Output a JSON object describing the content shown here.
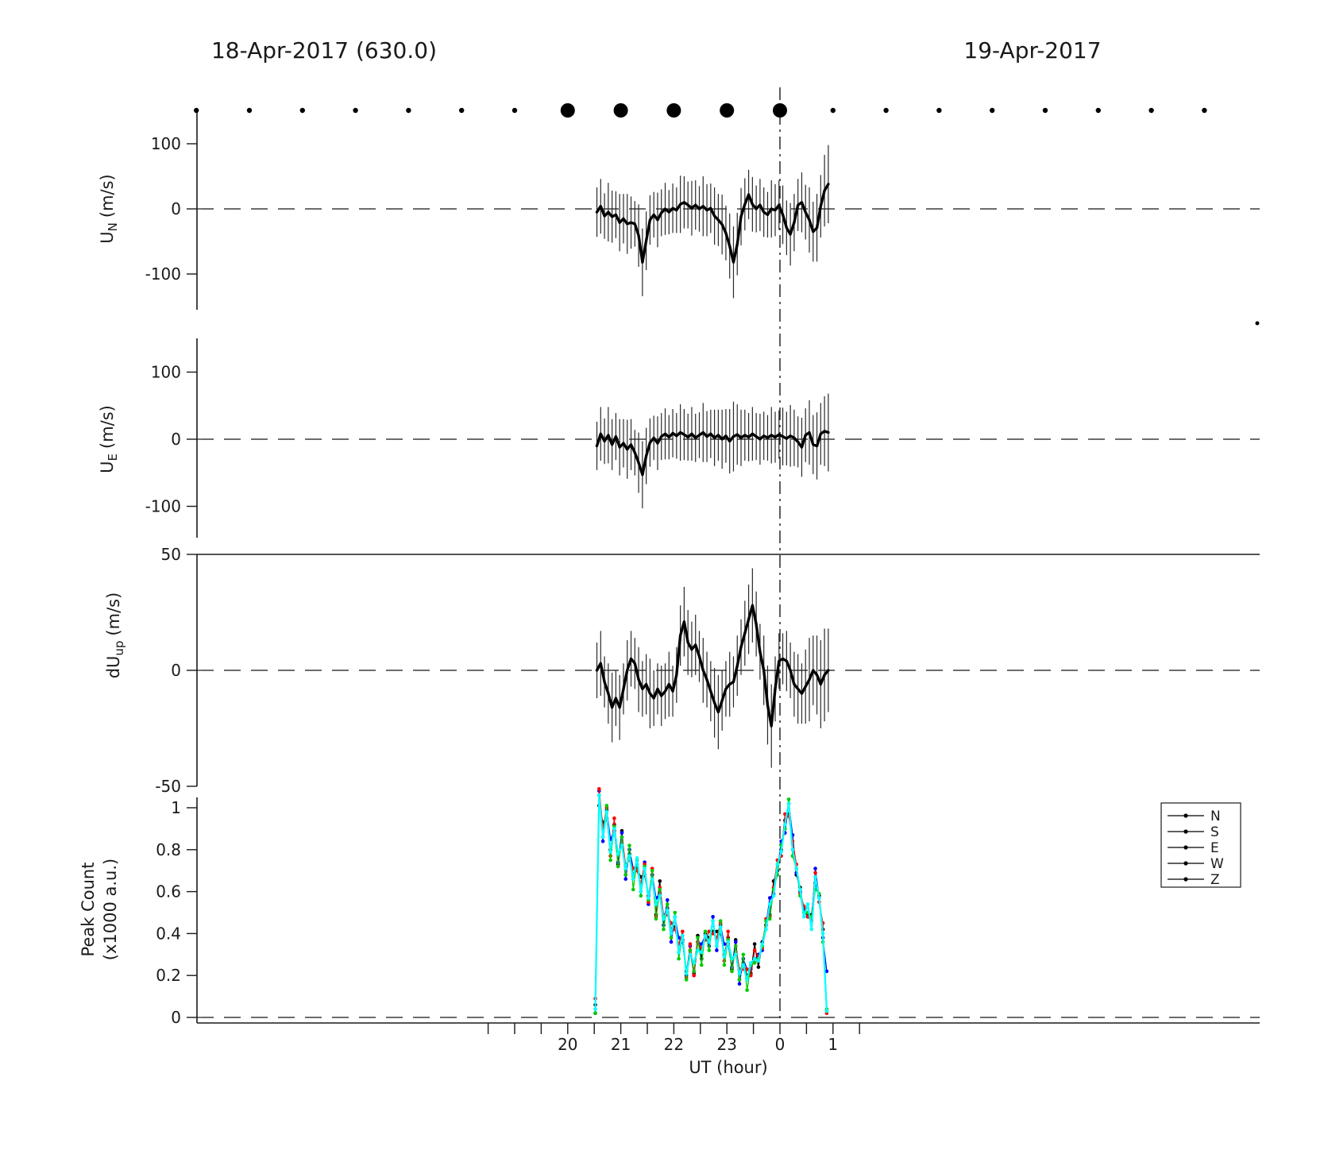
{
  "titles": {
    "left": "18-Apr-2017 (630.0)",
    "right": "19-Apr-2017"
  },
  "xlabel": "UT (hour)",
  "ylabels": {
    "p1": {
      "main": "U",
      "sub": "N",
      "rest": "(m/s)"
    },
    "p2": {
      "main": "U",
      "sub": "E",
      "rest": "(m/s)"
    },
    "p3": {
      "main": "dU",
      "sub": "up",
      "rest": "(m/s)"
    },
    "p4_line1": "Peak Count",
    "p4_line2": "(x1000 a.u.)"
  },
  "legend": {
    "entries": [
      "N",
      "S",
      "E",
      "W",
      "Z"
    ],
    "line_color": "#000000"
  },
  "chart_data": {
    "type": "line",
    "x_axis": {
      "label": "UT (hour)",
      "range_hours": [
        13.0,
        33.05
      ],
      "tick_labels": [
        {
          "hour": 20,
          "label": "20"
        },
        {
          "hour": 21,
          "label": "21"
        },
        {
          "hour": 22,
          "label": "22"
        },
        {
          "hour": 23,
          "label": "23"
        },
        {
          "hour": 24,
          "label": "0"
        },
        {
          "hour": 25,
          "label": "1"
        }
      ],
      "minor_ticks": {
        "start": 18.5,
        "end": 25.5,
        "step": 0.5
      }
    },
    "midnight_line_hour": 24,
    "observation_dots": {
      "small_hours": [
        13,
        14,
        15,
        16,
        17,
        18,
        19,
        25,
        26,
        27,
        28,
        29,
        30,
        31,
        32
      ],
      "large_hours": [
        20,
        21,
        22,
        23,
        24
      ]
    },
    "panels": [
      {
        "id": "UN",
        "ylabel": "U_N (m/s)",
        "ylim": [
          -152,
          152
        ],
        "yticks": [
          100,
          0,
          -100
        ],
        "zero_dashed_line": true,
        "line_color": "#000000",
        "series": {
          "x_start": 20.55,
          "x_step": 0.0715,
          "values": [
            -5,
            4,
            -11,
            -5,
            -12,
            -9,
            -21,
            -15,
            -23,
            -21,
            -23,
            -41,
            -82,
            -49,
            -17,
            -9,
            -17,
            -6,
            0,
            -5,
            1,
            -2,
            7,
            10,
            6,
            1,
            6,
            0,
            4,
            -2,
            1,
            -11,
            -17,
            -24,
            -37,
            -57,
            -82,
            -54,
            -12,
            7,
            22,
            7,
            0,
            6,
            -5,
            -9,
            0,
            -2,
            6,
            -9,
            -29,
            -39,
            -21,
            6,
            10,
            -5,
            -17,
            -35,
            -29,
            4,
            28,
            38
          ],
          "errors": [
            38,
            42,
            35,
            45,
            40,
            36,
            44,
            38,
            46,
            40,
            35,
            48,
            52,
            45,
            38,
            35,
            42,
            36,
            40,
            34,
            38,
            35,
            44,
            40,
            36,
            42,
            38,
            35,
            46,
            40,
            38,
            44,
            40,
            46,
            42,
            50,
            55,
            48,
            44,
            40,
            38,
            42,
            36,
            40,
            38,
            35,
            44,
            40,
            38,
            45,
            42,
            48,
            44,
            40,
            46,
            42,
            50,
            46,
            52,
            48,
            55,
            60
          ]
        }
      },
      {
        "id": "UE",
        "ylabel": "U_E (m/s)",
        "ylim": [
          -150,
          150
        ],
        "yticks": [
          100,
          0,
          -100
        ],
        "zero_dashed_line": true,
        "line_color": "#000000",
        "series": {
          "x_start": 20.55,
          "x_step": 0.0715,
          "values": [
            -10,
            8,
            -3,
            6,
            -8,
            4,
            -12,
            -6,
            -15,
            -8,
            -20,
            -35,
            -53,
            -25,
            -5,
            2,
            -6,
            4,
            8,
            3,
            9,
            5,
            10,
            7,
            3,
            8,
            2,
            6,
            10,
            4,
            8,
            2,
            6,
            0,
            5,
            -3,
            4,
            7,
            2,
            6,
            3,
            8,
            4,
            0,
            5,
            2,
            6,
            3,
            7,
            4,
            1,
            5,
            2,
            -4,
            -12,
            6,
            10,
            -8,
            -10,
            8,
            12,
            10
          ],
          "errors": [
            36,
            40,
            34,
            42,
            38,
            35,
            42,
            36,
            44,
            38,
            34,
            45,
            50,
            42,
            36,
            33,
            40,
            35,
            38,
            33,
            36,
            34,
            42,
            38,
            35,
            40,
            36,
            34,
            44,
            38,
            36,
            42,
            38,
            44,
            40,
            48,
            52,
            45,
            42,
            38,
            36,
            40,
            35,
            38,
            36,
            34,
            42,
            38,
            36,
            43,
            40,
            46,
            42,
            38,
            44,
            40,
            48,
            44,
            50,
            46,
            52,
            58
          ]
        }
      },
      {
        "id": "dUup",
        "ylabel": "dU_up (m/s)",
        "ylim": [
          -50,
          50
        ],
        "yticks": [
          50,
          0,
          -50
        ],
        "zero_dashed_line": true,
        "top_solid_line": true,
        "line_color": "#000000",
        "series": {
          "x_start": 20.55,
          "x_step": 0.0715,
          "values": [
            0,
            3,
            -5,
            -10,
            -16,
            -12,
            -16,
            -8,
            0,
            5,
            3,
            -4,
            -8,
            -6,
            -10,
            -12,
            -8,
            -11,
            -9,
            -6,
            -9,
            -2,
            15,
            21,
            12,
            9,
            11,
            6,
            0,
            -4,
            -9,
            -14,
            -18,
            -13,
            -8,
            -6,
            -5,
            2,
            10,
            16,
            22,
            28,
            20,
            8,
            0,
            -15,
            -24,
            -8,
            4,
            5,
            4,
            0,
            -6,
            -8,
            -10,
            -7,
            -4,
            0,
            -2,
            -6,
            -2,
            0
          ],
          "errors": [
            12,
            14,
            11,
            13,
            15,
            12,
            14,
            11,
            13,
            12,
            11,
            14,
            12,
            13,
            15,
            12,
            11,
            13,
            12,
            14,
            11,
            12,
            13,
            15,
            14,
            12,
            13,
            11,
            14,
            12,
            13,
            15,
            16,
            13,
            12,
            14,
            11,
            13,
            12,
            14,
            15,
            16,
            14,
            12,
            15,
            17,
            18,
            14,
            12,
            11,
            13,
            12,
            14,
            15,
            13,
            16,
            18,
            15,
            17,
            19,
            20,
            18
          ]
        }
      },
      {
        "id": "PeakCount",
        "ylabel": "Peak Count (x1000 a.u.)",
        "ylim": [
          -0.027,
          1.05
        ],
        "yticks": [
          1,
          0.8,
          0.6,
          0.4,
          0.2,
          0
        ],
        "zero_dashed_line": true,
        "series_multi": {
          "x_start": 20.52,
          "x_step": 0.0715,
          "series": [
            {
              "name": "N",
              "color": "#000000",
              "values": [
                0.06,
                1.01,
                0.93,
                0.95,
                0.8,
                0.92,
                0.73,
                0.89,
                0.68,
                0.78,
                0.68,
                0.71,
                0.67,
                0.68,
                0.58,
                0.68,
                0.49,
                0.65,
                0.44,
                0.52,
                0.42,
                0.43,
                0.38,
                0.36,
                0.22,
                0.32,
                0.21,
                0.39,
                0.28,
                0.4,
                0.38,
                0.41,
                0.41,
                0.4,
                0.3,
                0.38,
                0.23,
                0.37,
                0.18,
                0.26,
                0.2,
                0.21,
                0.35,
                0.24,
                0.36,
                0.44,
                0.49,
                0.65,
                0.7,
                0.8,
                0.94,
                0.97,
                0.87,
                0.68,
                0.62,
                0.5,
                0.49,
                0.49,
                0.64,
                0.58,
                0.42,
                0.03
              ]
            },
            {
              "name": "S",
              "color": "#0000ff",
              "values": [
                0.02,
                1.08,
                0.84,
                0.99,
                0.85,
                0.89,
                0.74,
                0.88,
                0.66,
                0.8,
                0.71,
                0.73,
                0.6,
                0.74,
                0.54,
                0.68,
                0.57,
                0.59,
                0.44,
                0.56,
                0.36,
                0.48,
                0.38,
                0.37,
                0.2,
                0.34,
                0.2,
                0.36,
                0.35,
                0.39,
                0.34,
                0.48,
                0.32,
                0.44,
                0.35,
                0.35,
                0.24,
                0.36,
                0.16,
                0.28,
                0.23,
                0.23,
                0.28,
                0.3,
                0.32,
                0.44,
                0.57,
                0.59,
                0.7,
                0.84,
                0.88,
                1.02,
                0.87,
                0.69,
                0.6,
                0.52,
                0.48,
                0.46,
                0.71,
                0.57,
                0.38,
                0.22
              ]
            },
            {
              "name": "E",
              "color": "#ff0000",
              "values": [
                0.09,
                1.09,
                0.9,
                1.0,
                0.77,
                0.95,
                0.72,
                0.86,
                0.73,
                0.75,
                0.71,
                0.7,
                0.64,
                0.73,
                0.55,
                0.71,
                0.48,
                0.62,
                0.49,
                0.49,
                0.45,
                0.42,
                0.35,
                0.41,
                0.19,
                0.35,
                0.2,
                0.36,
                0.33,
                0.37,
                0.41,
                0.4,
                0.38,
                0.45,
                0.27,
                0.41,
                0.22,
                0.34,
                0.23,
                0.23,
                0.23,
                0.2,
                0.32,
                0.29,
                0.33,
                0.47,
                0.48,
                0.62,
                0.75,
                0.77,
                0.97,
                0.96,
                0.84,
                0.73,
                0.59,
                0.53,
                0.48,
                0.46,
                0.69,
                0.55,
                0.45,
                0.02
              ]
            },
            {
              "name": "W",
              "color": "#00cc00",
              "values": [
                0.02,
                1.06,
                0.86,
                1.01,
                0.75,
                0.91,
                0.72,
                0.86,
                0.68,
                0.82,
                0.61,
                0.75,
                0.58,
                0.72,
                0.56,
                0.7,
                0.47,
                0.61,
                0.42,
                0.54,
                0.38,
                0.5,
                0.28,
                0.39,
                0.18,
                0.32,
                0.22,
                0.38,
                0.25,
                0.41,
                0.32,
                0.46,
                0.34,
                0.46,
                0.25,
                0.37,
                0.22,
                0.34,
                0.18,
                0.3,
                0.13,
                0.25,
                0.26,
                0.28,
                0.34,
                0.46,
                0.47,
                0.61,
                0.68,
                0.82,
                0.9,
                1.04,
                0.77,
                0.71,
                0.58,
                0.5,
                0.5,
                0.48,
                0.61,
                0.59,
                0.36,
                0.04
              ]
            },
            {
              "name": "Z",
              "color": "#00ffff",
              "values": [
                0.04,
                1.06,
                0.86,
                0.98,
                0.79,
                0.9,
                0.78,
                0.82,
                0.71,
                0.77,
                0.66,
                0.76,
                0.6,
                0.71,
                0.57,
                0.66,
                0.54,
                0.58,
                0.47,
                0.51,
                0.4,
                0.48,
                0.31,
                0.39,
                0.21,
                0.3,
                0.26,
                0.32,
                0.31,
                0.39,
                0.36,
                0.46,
                0.34,
                0.43,
                0.29,
                0.36,
                0.28,
                0.3,
                0.21,
                0.25,
                0.18,
                0.26,
                0.28,
                0.27,
                0.35,
                0.42,
                0.54,
                0.58,
                0.73,
                0.79,
                0.92,
                1.02,
                0.8,
                0.71,
                0.61,
                0.48,
                0.54,
                0.42,
                0.67,
                0.57,
                0.4,
                0.03
              ]
            }
          ]
        }
      }
    ]
  }
}
